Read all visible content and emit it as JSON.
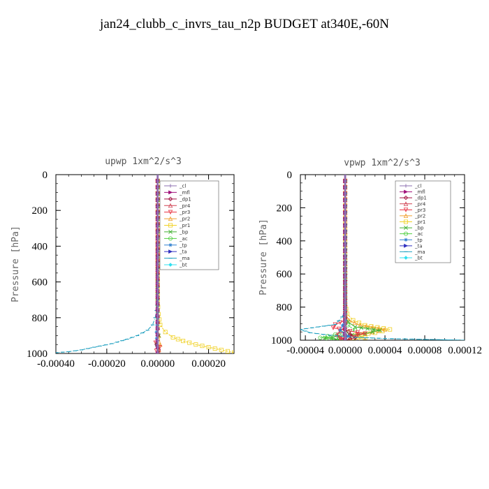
{
  "page_title": "jan24_clubb_c_invrs_tau_n2p  BUDGET at340E,-60N",
  "legend_entries": [
    {
      "name": "_cl",
      "color": "#8e6fb0",
      "marker": "cross"
    },
    {
      "name": "_mfl",
      "color": "#a0107a",
      "marker": "tri-right"
    },
    {
      "name": "_dp1",
      "color": "#a01040",
      "marker": "diamond"
    },
    {
      "name": "_pr4",
      "color": "#d04050",
      "marker": "tri-up-open"
    },
    {
      "name": "_pr3",
      "color": "#e83040",
      "marker": "tri-down-open"
    },
    {
      "name": "_pr2",
      "color": "#f0a030",
      "marker": "tri-up-open"
    },
    {
      "name": "_pr1",
      "color": "#f0d020",
      "marker": "square-open"
    },
    {
      "name": "_bp",
      "color": "#40b030",
      "marker": "x"
    },
    {
      "name": "_ac",
      "color": "#50d040",
      "marker": "circle-open"
    },
    {
      "name": "_tp",
      "color": "#3080d0",
      "marker": "star"
    },
    {
      "name": "_ta",
      "color": "#3030c0",
      "marker": "tri-right"
    },
    {
      "name": "_ma",
      "color": "#20a0c0",
      "marker": "dash"
    },
    {
      "name": "_bt",
      "color": "#30e0f0",
      "marker": "diamond-filled"
    }
  ],
  "chart_data": [
    {
      "type": "line",
      "title": "upwp   1xm^2/s^3",
      "xlabel": "",
      "ylabel": "Pressure [hPa]",
      "xlim": [
        -0.0004,
        0.0003
      ],
      "ylim": [
        1000,
        0
      ],
      "xticks": [
        -0.0004,
        -0.0002,
        0.0,
        0.0002
      ],
      "xtick_labels": [
        "-0.00040",
        "-0.00020",
        "0.00000",
        "0.00020"
      ],
      "yticks": [
        0,
        200,
        400,
        600,
        800,
        1000
      ],
      "ytick_labels": [
        "0",
        "200",
        "400",
        "600",
        "800",
        "1000"
      ],
      "grid": false,
      "legend_position": "top-right",
      "series": [
        {
          "name": "_pr1",
          "color": "#f0d020",
          "marker": "square-open",
          "x": [
            0,
            0,
            3e-06,
            1e-05,
            3e-05,
            6e-05,
            0.0001,
            0.00015,
            0.0002,
            0.00025,
            0.0003
          ],
          "y": [
            0,
            700,
            780,
            840,
            880,
            910,
            930,
            950,
            965,
            980,
            995
          ]
        },
        {
          "name": "_ma",
          "color": "#20a0c0",
          "marker": "dash",
          "x": [
            0,
            0,
            -5e-06,
            -1e-05,
            -2e-05,
            -4e-05,
            -8e-05,
            -0.00012,
            -0.00018,
            -0.00025,
            -0.0003,
            -0.00035,
            -0.00042
          ],
          "y": [
            0,
            700,
            760,
            800,
            840,
            870,
            900,
            920,
            945,
            965,
            980,
            990,
            998
          ]
        },
        {
          "name": "_pr2",
          "color": "#f0a030",
          "marker": "tri-up-open",
          "x": [
            0,
            0,
            5e-06,
            1e-05,
            5e-06,
            0.0
          ],
          "y": [
            0,
            850,
            900,
            950,
            980,
            1000
          ]
        },
        {
          "name": "_pr3",
          "color": "#e83040",
          "marker": "tri-down-open",
          "x": [
            0,
            0,
            -8e-06,
            8e-06,
            -5e-06,
            3e-06
          ],
          "y": [
            0,
            900,
            940,
            965,
            985,
            1000
          ]
        },
        {
          "name": "_bp",
          "color": "#40b030",
          "marker": "x",
          "x": [
            0,
            0,
            4e-06,
            -3e-06,
            0.0
          ],
          "y": [
            0,
            850,
            900,
            950,
            1000
          ]
        },
        {
          "name": "_tp",
          "color": "#3080d0",
          "marker": "star",
          "x": [
            0,
            0,
            -5e-06,
            -3e-06,
            0.0
          ],
          "y": [
            0,
            800,
            880,
            950,
            1000
          ]
        },
        {
          "name": "_dp1",
          "color": "#a01040",
          "marker": "diamond",
          "x": [
            0,
            0,
            -4e-06,
            4e-06,
            0.0
          ],
          "y": [
            0,
            900,
            950,
            980,
            1000
          ]
        },
        {
          "name": "_mfl",
          "color": "#a0107a",
          "marker": "tri-right",
          "x": [
            0,
            0,
            0.0
          ],
          "y": [
            0,
            500,
            1000
          ]
        },
        {
          "name": "_cl",
          "color": "#8e6fb0",
          "marker": "cross",
          "x": [
            0,
            0
          ],
          "y": [
            0,
            1000
          ]
        }
      ]
    },
    {
      "type": "line",
      "title": "vpwp   1xm^2/s^3",
      "xlabel": "",
      "ylabel": "Pressure [hPa]",
      "xlim": [
        -4.5e-05,
        0.00012
      ],
      "ylim": [
        1000,
        0
      ],
      "xticks": [
        -4e-05,
        0.0,
        4e-05,
        8e-05,
        0.00012
      ],
      "xtick_labels": [
        "-0.00004",
        "0.00000",
        "0.00004",
        "0.00008",
        "0.00012"
      ],
      "yticks": [
        0,
        200,
        400,
        600,
        800,
        1000
      ],
      "ytick_labels": [
        "0",
        "200",
        "400",
        "600",
        "800",
        "1000"
      ],
      "grid": false,
      "legend_position": "top-right",
      "series": [
        {
          "name": "_pr1",
          "color": "#f0d020",
          "marker": "square-open",
          "x": [
            0,
            0,
            2e-06,
            8e-06,
            2e-05,
            4.5e-05,
            3e-05,
            1e-05,
            2e-05,
            5e-06
          ],
          "y": [
            0,
            780,
            840,
            880,
            910,
            935,
            955,
            970,
            985,
            1000
          ]
        },
        {
          "name": "_pr2",
          "color": "#f0a030",
          "marker": "tri-up-open",
          "x": [
            0,
            0,
            4e-06,
            1.5e-05,
            4e-05,
            2e-05,
            5e-06
          ],
          "y": [
            0,
            840,
            880,
            910,
            935,
            960,
            985
          ]
        },
        {
          "name": "_bp",
          "color": "#40b030",
          "marker": "x",
          "x": [
            0,
            0,
            3e-06,
            1e-05,
            3.5e-05,
            2e-05,
            -2e-05,
            0.0
          ],
          "y": [
            0,
            850,
            890,
            920,
            940,
            960,
            985,
            1000
          ]
        },
        {
          "name": "_ac",
          "color": "#50d040",
          "marker": "circle-open",
          "x": [
            0,
            0,
            3e-06,
            1e-05,
            -1e-05,
            -2.5e-05,
            0.0
          ],
          "y": [
            0,
            880,
            910,
            940,
            965,
            985,
            1000
          ]
        },
        {
          "name": "_pr3",
          "color": "#e83040",
          "marker": "tri-down-open",
          "x": [
            0,
            0,
            -1e-05,
            -1.2e-05,
            5e-06,
            2e-05,
            5e-06,
            -5e-06,
            0.0
          ],
          "y": [
            0,
            880,
            905,
            925,
            945,
            960,
            975,
            990,
            1000
          ]
        },
        {
          "name": "_pr4",
          "color": "#d04050",
          "marker": "tri-up-open",
          "x": [
            0,
            0,
            -5e-06,
            -8e-06,
            -4e-06,
            0.0
          ],
          "y": [
            0,
            920,
            945,
            965,
            985,
            1000
          ]
        },
        {
          "name": "_dp1",
          "color": "#a01040",
          "marker": "diamond",
          "x": [
            0,
            0,
            5e-06,
            1e-05,
            0.0
          ],
          "y": [
            0,
            940,
            965,
            985,
            1000
          ]
        },
        {
          "name": "_ma",
          "color": "#20a0c0",
          "marker": "dash",
          "x": [
            0,
            0,
            -3e-06,
            -1e-05,
            -4.5e-05,
            -3.5e-05,
            -1.5e-05,
            1e-05,
            4e-05,
            8e-05,
            0.00012
          ],
          "y": [
            0,
            820,
            860,
            905,
            935,
            955,
            970,
            982,
            990,
            995,
            1000
          ]
        },
        {
          "name": "_tp",
          "color": "#3080d0",
          "marker": "star",
          "x": [
            0,
            0,
            -5e-06,
            3e-06,
            0.0
          ],
          "y": [
            0,
            880,
            940,
            975,
            1000
          ]
        },
        {
          "name": "_mfl",
          "color": "#a0107a",
          "marker": "tri-right",
          "x": [
            0,
            0,
            0.0
          ],
          "y": [
            0,
            500,
            1000
          ]
        },
        {
          "name": "_cl",
          "color": "#8e6fb0",
          "marker": "cross",
          "x": [
            0,
            0
          ],
          "y": [
            0,
            1000
          ]
        }
      ]
    }
  ]
}
